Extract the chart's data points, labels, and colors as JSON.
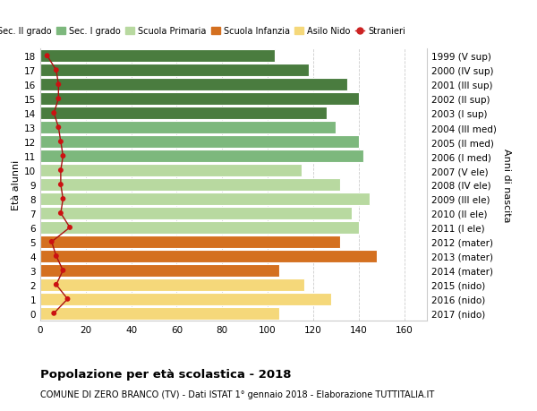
{
  "ages": [
    18,
    17,
    16,
    15,
    14,
    13,
    12,
    11,
    10,
    9,
    8,
    7,
    6,
    5,
    4,
    3,
    2,
    1,
    0
  ],
  "bar_values": [
    103,
    118,
    135,
    140,
    126,
    130,
    140,
    142,
    115,
    132,
    145,
    137,
    140,
    132,
    148,
    105,
    116,
    128,
    105
  ],
  "right_labels": [
    "1999 (V sup)",
    "2000 (IV sup)",
    "2001 (III sup)",
    "2002 (II sup)",
    "2003 (I sup)",
    "2004 (III med)",
    "2005 (II med)",
    "2006 (I med)",
    "2007 (V ele)",
    "2008 (IV ele)",
    "2009 (III ele)",
    "2010 (II ele)",
    "2011 (I ele)",
    "2012 (mater)",
    "2013 (mater)",
    "2014 (mater)",
    "2015 (nido)",
    "2016 (nido)",
    "2017 (nido)"
  ],
  "bar_colors": [
    "#4a7c3f",
    "#4a7c3f",
    "#4a7c3f",
    "#4a7c3f",
    "#4a7c3f",
    "#7db87d",
    "#7db87d",
    "#7db87d",
    "#b8d9a0",
    "#b8d9a0",
    "#b8d9a0",
    "#b8d9a0",
    "#b8d9a0",
    "#d47020",
    "#d47020",
    "#d47020",
    "#f5d87a",
    "#f5d87a",
    "#f5d87a"
  ],
  "stranieri_values": [
    3,
    7,
    8,
    8,
    6,
    8,
    9,
    10,
    9,
    9,
    10,
    9,
    13,
    5,
    7,
    10,
    7,
    12,
    6
  ],
  "legend_labels": [
    "Sec. II grado",
    "Sec. I grado",
    "Scuola Primaria",
    "Scuola Infanzia",
    "Asilo Nido",
    "Stranieri"
  ],
  "legend_colors": [
    "#4a7c3f",
    "#7db87d",
    "#b8d9a0",
    "#d47020",
    "#f5d87a",
    "#cc2222"
  ],
  "ylabel_text": "Età alunni",
  "right_ylabel_text": "Anni di nascita",
  "title_bold": "Popolazione per età scolastica - 2018",
  "subtitle": "COMUNE DI ZERO BRANCO (TV) - Dati ISTAT 1° gennaio 2018 - Elaborazione TUTTITALIA.IT",
  "xlim": [
    0,
    170
  ],
  "xticks": [
    0,
    20,
    40,
    60,
    80,
    100,
    120,
    140,
    160
  ],
  "bg_color": "#ffffff",
  "grid_color": "#cccccc"
}
